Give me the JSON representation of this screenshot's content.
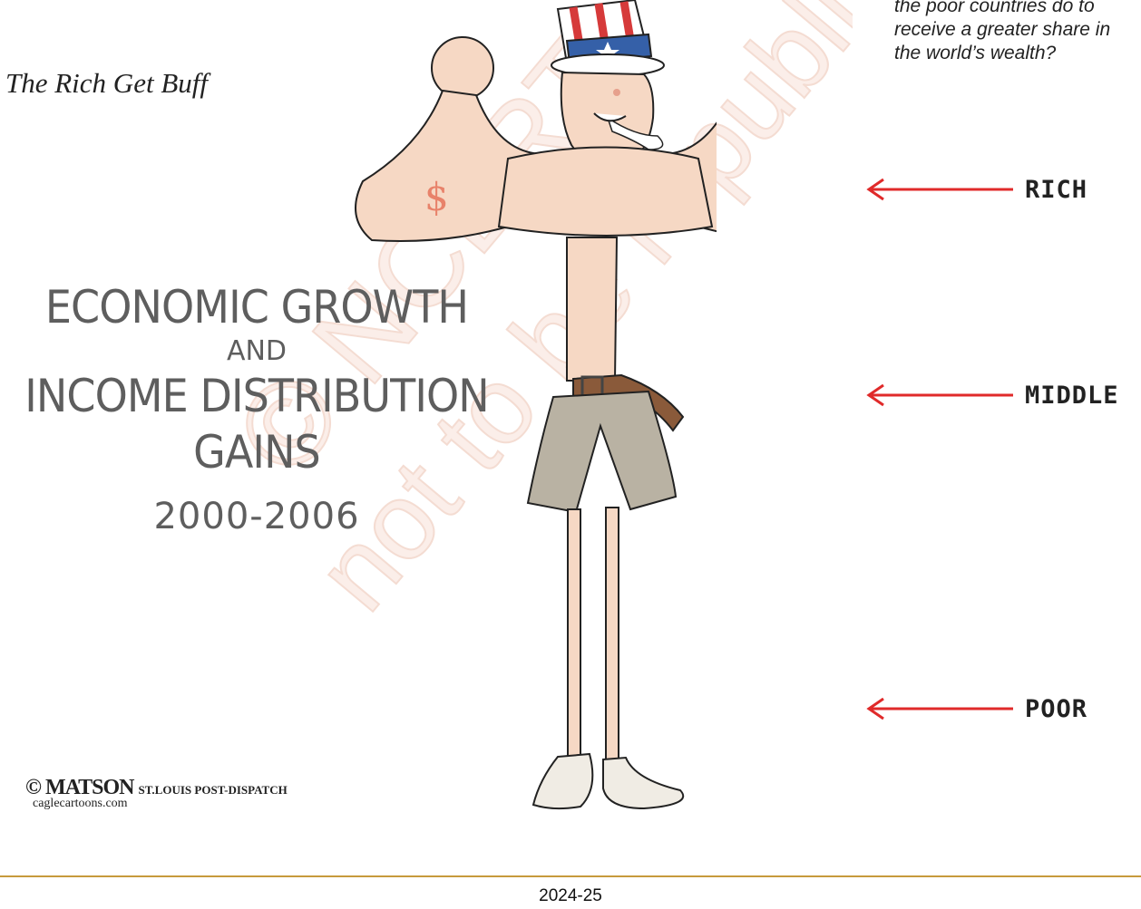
{
  "question": {
    "lines": [
      "the poor countries do to",
      "receive a greater share in",
      "the world’s wealth?"
    ]
  },
  "caption": {
    "title": "The Rich Get Buff"
  },
  "headline": {
    "line1": "ECONOMIC GROWTH",
    "line2": "AND",
    "line3": "INCOME DISTRIBUTION",
    "line4": "GAINS",
    "years": "2000-2006"
  },
  "arrows": {
    "rich": "RICH",
    "middle": "MIDDLE",
    "poor": "POOR",
    "color": "#e02a2a"
  },
  "credit": {
    "artist": "MATSON",
    "paper": "ST.LOUIS POST-DISPATCH",
    "site": "caglecartoons.com"
  },
  "watermark": {
    "line1": "© NCERT",
    "line2": "not to be republished"
  },
  "footer": {
    "year": "2024-25"
  },
  "colors": {
    "rule": "#c79a3c",
    "skin": "#f6d8c4",
    "shorts": "#b9b2a3",
    "belt": "#8a5a3a"
  }
}
